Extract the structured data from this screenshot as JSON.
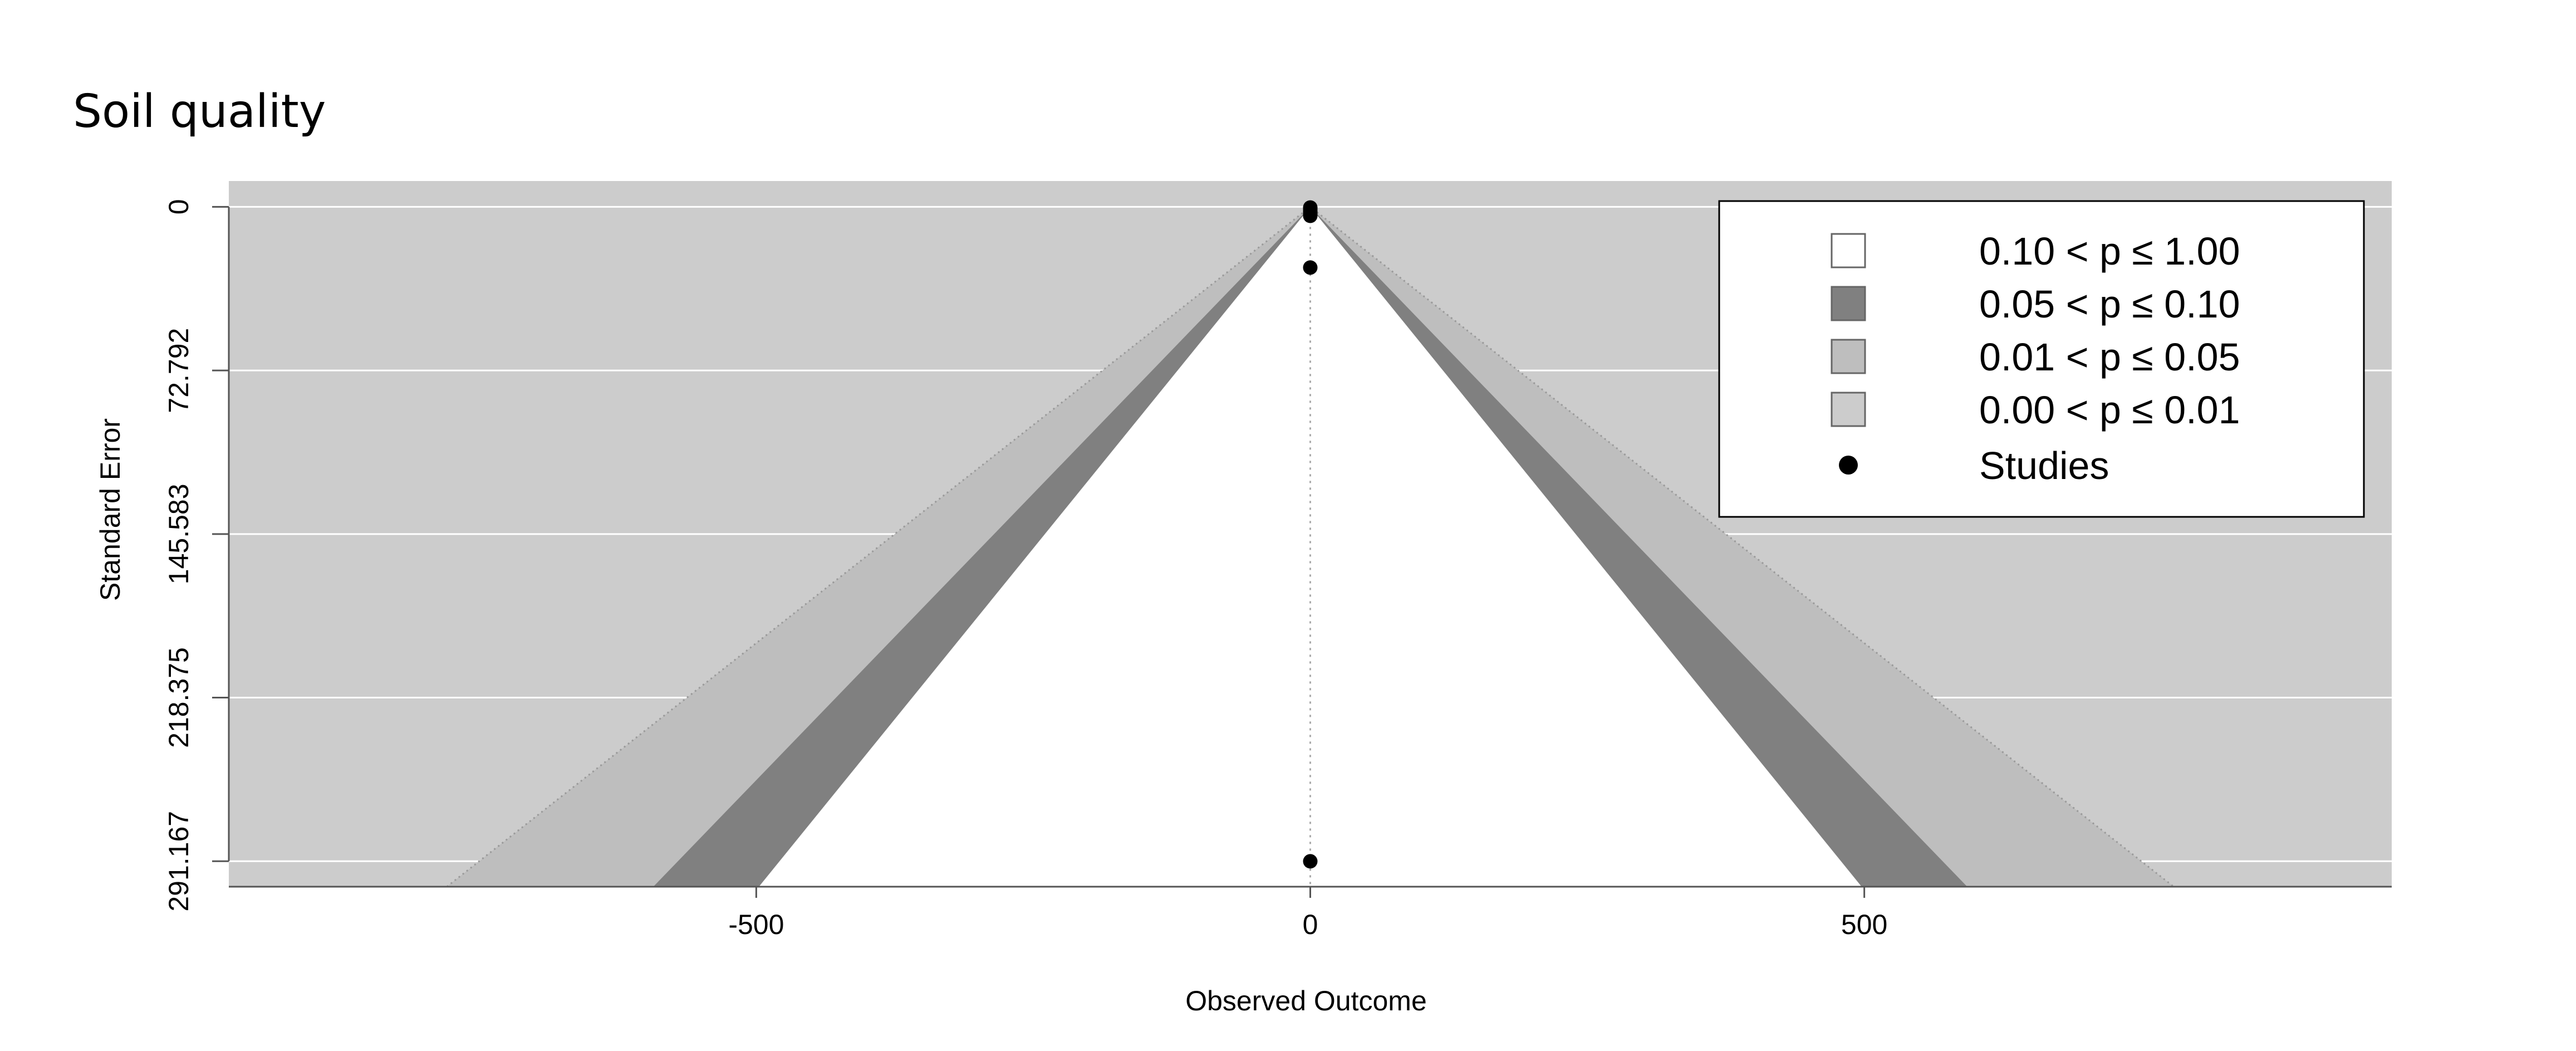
{
  "chart_data": {
    "type": "scatter",
    "subtype": "contour-enhanced funnel plot",
    "title": "Soil quality",
    "xlabel": "Observed Outcome",
    "ylabel": "Standard Error",
    "x_ticks": [
      -500,
      0,
      500
    ],
    "y_ticks": [
      "0",
      "72.792",
      "145.583",
      "218.375",
      "291.167"
    ],
    "y_tick_values": [
      0,
      72.792,
      145.583,
      218.375,
      291.167
    ],
    "xlim": [
      -976,
      976
    ],
    "ylim": [
      302.5,
      -11.5
    ],
    "y_reversed": true,
    "grid": true,
    "reference_line_x": 0,
    "contour_z": [
      1.645,
      1.96,
      2.576
    ],
    "studies": [
      {
        "x": 0,
        "y": 0.3
      },
      {
        "x": 0,
        "y": 1.0
      },
      {
        "x": 0,
        "y": 2.0
      },
      {
        "x": 0,
        "y": 3.0
      },
      {
        "x": 0,
        "y": 4.0
      },
      {
        "x": 0,
        "y": 27.0
      },
      {
        "x": 0,
        "y": 291.2
      }
    ],
    "legend": {
      "position": "top-right",
      "entries": [
        {
          "label": "0.10 < p ≤ 1.00",
          "swatch": "#ffffff"
        },
        {
          "label": "0.05 < p ≤ 0.10",
          "swatch": "#808080"
        },
        {
          "label": "0.01 < p ≤ 0.05",
          "swatch": "#bebebe"
        },
        {
          "label": "0.00 < p ≤ 0.01",
          "swatch": "#cccccc"
        },
        {
          "label": "Studies",
          "marker": "dot"
        }
      ]
    },
    "colors": {
      "background": "#cccccc",
      "region_p_0_01": "#bebebe",
      "region_p_0_05": "#808080",
      "region_p_0_10": "#ffffff",
      "grid": "#ffffff",
      "points": "#000000"
    }
  }
}
